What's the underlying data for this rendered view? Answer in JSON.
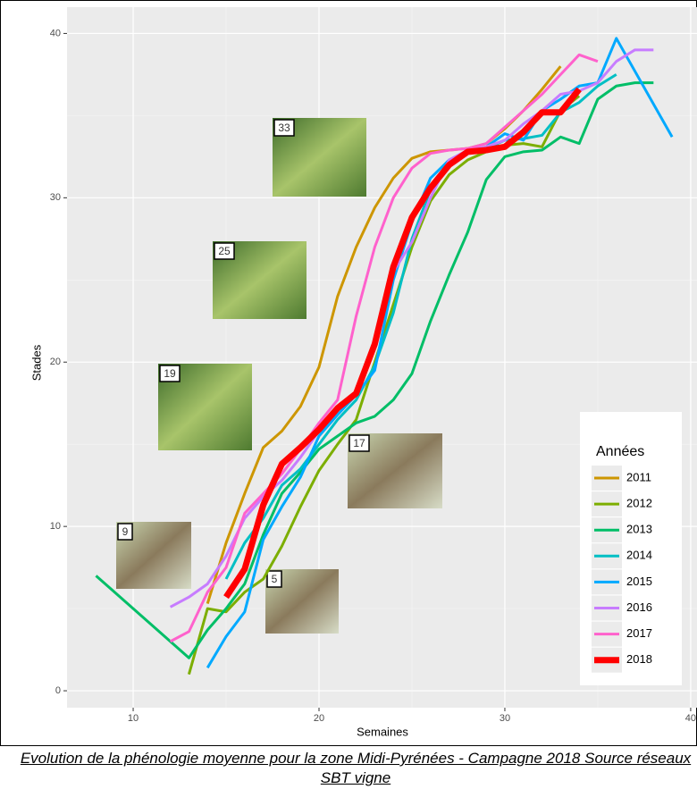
{
  "chart_data": {
    "type": "line",
    "title": "Evolution de la phénologie moyenne pour la zone Midi-Pyrénées - Campagne 2018 Source réseaux SBT vigne",
    "x_label": "Semaines",
    "y_label": "Stades",
    "legend_title": "Années",
    "legend_position": "right",
    "grid": true,
    "xlim": [
      6.44,
      40.34
    ],
    "ylim": [
      -1.03,
      41.6
    ],
    "xticks": [
      10,
      20,
      30,
      40
    ],
    "yticks": [
      0,
      10,
      20,
      30,
      40
    ],
    "annotations": [
      {
        "label": "33"
      },
      {
        "label": "25"
      },
      {
        "label": "19"
      },
      {
        "label": "17"
      },
      {
        "label": "9"
      },
      {
        "label": "5"
      }
    ],
    "series": [
      {
        "name": "2011",
        "color": "#cd9600",
        "line_width": 3,
        "x": [
          14,
          15,
          16,
          17,
          18,
          19,
          20,
          21,
          22,
          23,
          24,
          25,
          26,
          27,
          28,
          29,
          30,
          31,
          32,
          33
        ],
        "values": [
          5.3,
          9.0,
          12.0,
          14.8,
          15.8,
          17.3,
          19.7,
          24.0,
          27.0,
          29.4,
          31.2,
          32.4,
          32.8,
          32.9,
          33.0,
          33.3,
          34.2,
          35.3,
          36.6,
          38.0
        ]
      },
      {
        "name": "2012",
        "color": "#7cae00",
        "line_width": 3,
        "x": [
          13,
          14,
          15,
          16,
          17,
          18,
          19,
          20,
          21,
          22,
          23,
          24,
          25,
          26,
          27,
          28,
          29,
          30,
          31,
          32,
          33,
          34
        ],
        "values": [
          1.0,
          5.0,
          4.8,
          6.0,
          6.8,
          8.8,
          11.2,
          13.4,
          15.0,
          16.5,
          20.0,
          23.5,
          27.0,
          29.8,
          31.4,
          32.3,
          32.8,
          33.2,
          33.3,
          33.1,
          35.3,
          36.2
        ]
      },
      {
        "name": "2013",
        "color": "#00be67",
        "line_width": 3,
        "x": [
          8,
          13,
          14,
          15,
          16,
          17,
          18,
          19,
          20,
          21,
          22,
          23,
          24,
          25,
          26,
          27,
          28,
          29,
          30,
          31,
          32,
          33,
          34,
          35,
          36,
          37,
          38
        ],
        "values": [
          7.0,
          2.0,
          3.7,
          5.0,
          6.5,
          9.5,
          12.0,
          13.3,
          14.7,
          15.5,
          16.3,
          16.7,
          17.7,
          19.3,
          22.5,
          25.3,
          27.9,
          31.1,
          32.5,
          32.8,
          32.9,
          33.7,
          33.3,
          36.0,
          36.8,
          37.0,
          37.0
        ]
      },
      {
        "name": "2014",
        "color": "#00bfc4",
        "line_width": 3,
        "x": [
          15,
          16,
          17,
          18,
          19,
          20,
          21,
          22,
          23,
          24,
          25,
          26,
          27,
          28,
          29,
          30,
          31,
          32,
          33,
          34,
          35,
          36
        ],
        "values": [
          6.8,
          9.0,
          10.5,
          12.5,
          13.5,
          15.0,
          16.5,
          17.7,
          19.8,
          23.0,
          27.5,
          30.5,
          32.0,
          32.8,
          33.0,
          33.5,
          33.6,
          33.8,
          35.2,
          35.8,
          36.8,
          37.5
        ]
      },
      {
        "name": "2015",
        "color": "#00a9ff",
        "line_width": 3,
        "x": [
          14,
          15,
          16,
          17,
          18,
          19,
          20,
          21,
          22,
          23,
          24,
          25,
          26,
          27,
          28,
          29,
          30,
          31,
          32,
          33,
          34,
          35,
          36,
          39
        ],
        "values": [
          1.4,
          3.3,
          4.8,
          9.2,
          11.2,
          13.0,
          15.5,
          16.8,
          18.0,
          19.5,
          25.0,
          28.5,
          31.2,
          32.3,
          32.8,
          33.1,
          33.9,
          33.5,
          35.3,
          36.0,
          36.8,
          37.0,
          39.7,
          33.7
        ]
      },
      {
        "name": "2016",
        "color": "#c77cff",
        "line_width": 3,
        "x": [
          12,
          13,
          14,
          15,
          16,
          17,
          18,
          19,
          20,
          21,
          22,
          23,
          24,
          25,
          26,
          27,
          28,
          29,
          30,
          31,
          32,
          33,
          34,
          35,
          36,
          37,
          38
        ],
        "values": [
          5.1,
          5.7,
          6.5,
          8.2,
          10.5,
          11.8,
          12.8,
          14.2,
          15.8,
          17.3,
          18.1,
          21.0,
          25.5,
          27.3,
          30.0,
          32.3,
          32.9,
          33.1,
          33.5,
          34.5,
          35.3,
          36.3,
          36.5,
          37.0,
          38.3,
          39.0,
          39.0
        ]
      },
      {
        "name": "2017",
        "color": "#ff61cc",
        "line_width": 3,
        "x": [
          12,
          13,
          14,
          15,
          16,
          17,
          18,
          19,
          20,
          21,
          22,
          23,
          24,
          25,
          26,
          27,
          28,
          29,
          30,
          31,
          32,
          33,
          34,
          35
        ],
        "values": [
          3.0,
          3.6,
          6.0,
          7.5,
          10.8,
          12.0,
          13.2,
          14.7,
          16.3,
          17.7,
          22.8,
          27.0,
          30.0,
          31.8,
          32.7,
          32.9,
          33.0,
          33.3,
          34.3,
          35.3,
          36.3,
          37.5,
          38.7,
          38.3
        ]
      },
      {
        "name": "2018",
        "color": "#ff0000",
        "line_width": 7,
        "x": [
          15,
          16,
          17,
          18,
          19,
          20,
          21,
          22,
          23,
          24,
          25,
          26,
          27,
          28,
          29,
          30,
          31,
          32,
          33,
          34
        ],
        "values": [
          5.7,
          7.4,
          11.3,
          13.8,
          14.8,
          15.9,
          17.2,
          18.1,
          21.1,
          25.8,
          28.8,
          30.6,
          32.0,
          32.8,
          32.9,
          33.1,
          34.0,
          35.2,
          35.2,
          36.6
        ]
      }
    ]
  }
}
